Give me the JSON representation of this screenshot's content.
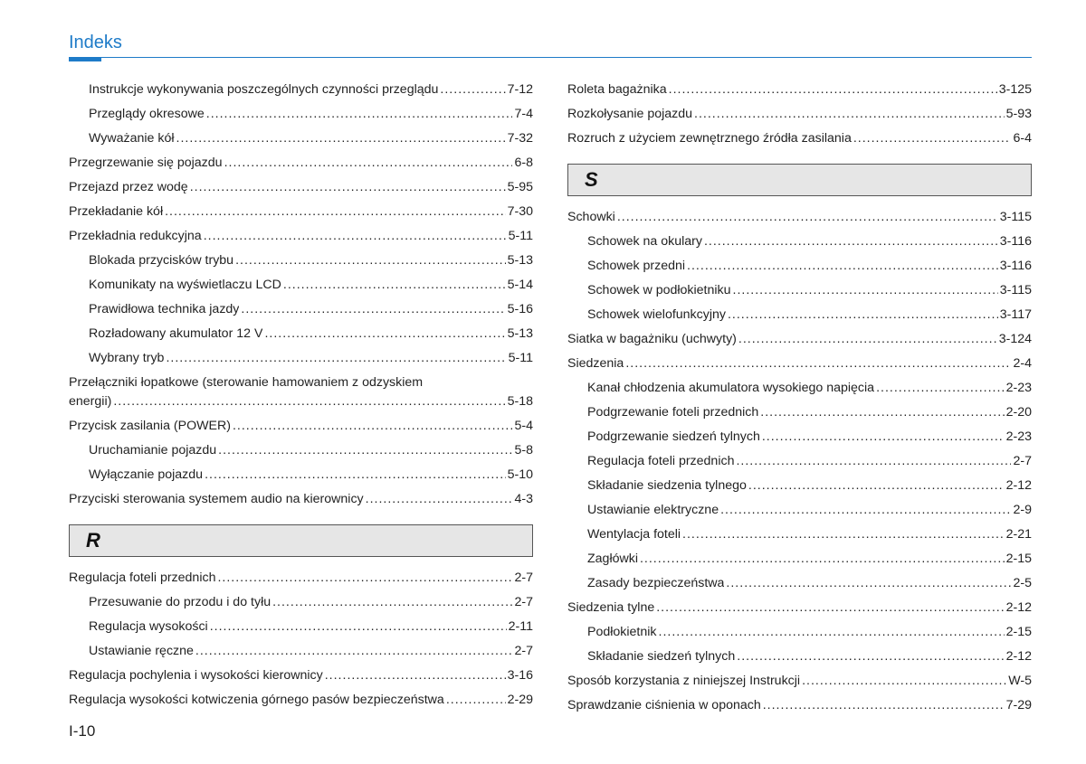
{
  "header": {
    "title": "Indeks"
  },
  "pageNumber": "I-10",
  "leftColumn": [
    {
      "kind": "entry",
      "level": 1,
      "label": "Instrukcje wykonywania poszczególnych czynności przeglądu",
      "page": "7-12"
    },
    {
      "kind": "entry",
      "level": 1,
      "label": "Przeglądy okresowe",
      "page": "7-4"
    },
    {
      "kind": "entry",
      "level": 1,
      "label": "Wyważanie kół",
      "page": "7-32"
    },
    {
      "kind": "entry",
      "level": 0,
      "label": "Przegrzewanie się pojazdu",
      "page": "6-8"
    },
    {
      "kind": "entry",
      "level": 0,
      "label": "Przejazd przez wodę",
      "page": "5-95"
    },
    {
      "kind": "entry",
      "level": 0,
      "label": "Przekładanie kół",
      "page": "7-30"
    },
    {
      "kind": "entry",
      "level": 0,
      "label": "Przekładnia redukcyjna",
      "page": "5-11"
    },
    {
      "kind": "entry",
      "level": 1,
      "label": "Blokada przycisków trybu",
      "page": "5-13"
    },
    {
      "kind": "entry",
      "level": 1,
      "label": "Komunikaty na wyświetlaczu LCD",
      "page": "5-14"
    },
    {
      "kind": "entry",
      "level": 1,
      "label": "Prawidłowa technika jazdy",
      "page": "5-16"
    },
    {
      "kind": "entry",
      "level": 1,
      "label": "Rozładowany akumulator 12 V",
      "page": "5-13"
    },
    {
      "kind": "entry",
      "level": 1,
      "label": "Wybrany tryb",
      "page": "5-11"
    },
    {
      "kind": "multiline",
      "level": 0,
      "line1": "Przełączniki łopatkowe (sterowanie hamowaniem z odzyskiem",
      "line2": "energii)",
      "page": "5-18"
    },
    {
      "kind": "entry",
      "level": 0,
      "label": "Przycisk zasilania (POWER)",
      "page": "5-4"
    },
    {
      "kind": "entry",
      "level": 1,
      "label": "Uruchamianie pojazdu",
      "page": "5-8"
    },
    {
      "kind": "entry",
      "level": 1,
      "label": "Wyłączanie pojazdu",
      "page": "5-10"
    },
    {
      "kind": "entry",
      "level": 0,
      "label": "Przyciski sterowania systemem audio na kierownicy",
      "page": "4-3"
    },
    {
      "kind": "section",
      "letter": "R"
    },
    {
      "kind": "entry",
      "level": 0,
      "label": "Regulacja foteli przednich",
      "page": "2-7"
    },
    {
      "kind": "entry",
      "level": 1,
      "label": "Przesuwanie do przodu i do tyłu",
      "page": "2-7"
    },
    {
      "kind": "entry",
      "level": 1,
      "label": "Regulacja wysokości",
      "page": "2-11"
    },
    {
      "kind": "entry",
      "level": 1,
      "label": "Ustawianie ręczne",
      "page": "2-7"
    },
    {
      "kind": "entry",
      "level": 0,
      "label": "Regulacja pochylenia i wysokości kierownicy",
      "page": "3-16"
    },
    {
      "kind": "entry",
      "level": 0,
      "label": "Regulacja wysokości kotwiczenia górnego pasów bezpieczeństwa",
      "page": "2-29"
    }
  ],
  "rightColumn": [
    {
      "kind": "entry",
      "level": 0,
      "label": "Roleta bagażnika",
      "page": "3-125"
    },
    {
      "kind": "entry",
      "level": 0,
      "label": "Rozkołysanie pojazdu",
      "page": "5-93"
    },
    {
      "kind": "entry",
      "level": 0,
      "label": "Rozruch z użyciem zewnętrznego źródła zasilania",
      "page": "6-4"
    },
    {
      "kind": "section",
      "letter": "S"
    },
    {
      "kind": "entry",
      "level": 0,
      "label": "Schowki",
      "page": "3-115"
    },
    {
      "kind": "entry",
      "level": 1,
      "label": "Schowek na okulary",
      "page": "3-116"
    },
    {
      "kind": "entry",
      "level": 1,
      "label": "Schowek przedni",
      "page": "3-116"
    },
    {
      "kind": "entry",
      "level": 1,
      "label": "Schowek w podłokietniku",
      "page": "3-115"
    },
    {
      "kind": "entry",
      "level": 1,
      "label": "Schowek wielofunkcyjny",
      "page": "3-117"
    },
    {
      "kind": "entry",
      "level": 0,
      "label": "Siatka w bagażniku (uchwyty)",
      "page": "3-124"
    },
    {
      "kind": "entry",
      "level": 0,
      "label": "Siedzenia",
      "page": "2-4"
    },
    {
      "kind": "entry",
      "level": 1,
      "label": "Kanał chłodzenia akumulatora wysokiego napięcia",
      "page": "2-23"
    },
    {
      "kind": "entry",
      "level": 1,
      "label": "Podgrzewanie foteli przednich",
      "page": "2-20"
    },
    {
      "kind": "entry",
      "level": 1,
      "label": "Podgrzewanie siedzeń tylnych",
      "page": "2-23"
    },
    {
      "kind": "entry",
      "level": 1,
      "label": "Regulacja foteli przednich",
      "page": "2-7"
    },
    {
      "kind": "entry",
      "level": 1,
      "label": "Składanie siedzenia tylnego",
      "page": "2-12"
    },
    {
      "kind": "entry",
      "level": 1,
      "label": "Ustawianie elektryczne",
      "page": "2-9"
    },
    {
      "kind": "entry",
      "level": 1,
      "label": "Wentylacja foteli",
      "page": "2-21"
    },
    {
      "kind": "entry",
      "level": 1,
      "label": "Zagłówki",
      "page": "2-15"
    },
    {
      "kind": "entry",
      "level": 1,
      "label": "Zasady bezpieczeństwa",
      "page": "2-5"
    },
    {
      "kind": "entry",
      "level": 0,
      "label": "Siedzenia tylne",
      "page": "2-12"
    },
    {
      "kind": "entry",
      "level": 1,
      "label": "Podłokietnik",
      "page": "2-15"
    },
    {
      "kind": "entry",
      "level": 1,
      "label": "Składanie siedzeń tylnych",
      "page": "2-12"
    },
    {
      "kind": "entry",
      "level": 0,
      "label": "Sposób korzystania z niniejszej Instrukcji",
      "page": "W-5"
    },
    {
      "kind": "entry",
      "level": 0,
      "label": "Sprawdzanie ciśnienia w oponach",
      "page": "7-29"
    }
  ]
}
